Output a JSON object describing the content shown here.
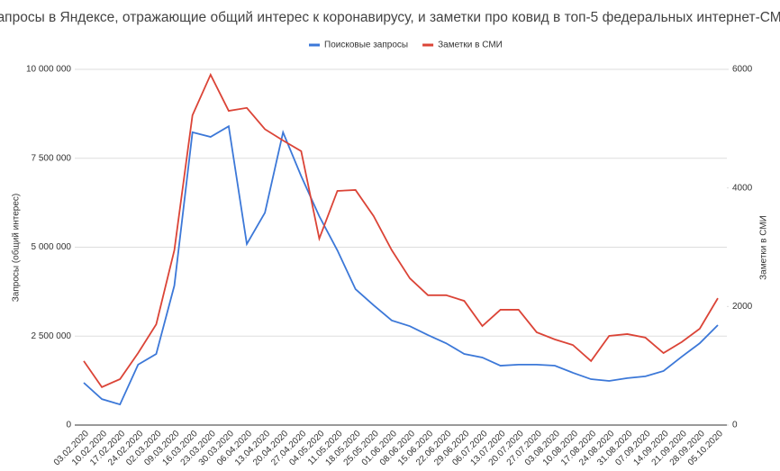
{
  "chart_data": {
    "type": "line",
    "title": "Запросы в Яндексе, отражающие общий интерес к коронавирусу, и заметки про ковид в топ-5 федеральных интернет-СМИ",
    "y_label": "Запросы (общий интерес)",
    "y2_label": "Заметки в СМИ",
    "categories": [
      "03.02.2020",
      "10.02.2020",
      "17.02.2020",
      "24.02.2020",
      "02.03.2020",
      "09.03.2020",
      "16.03.2020",
      "23.03.2020",
      "30.03.2020",
      "06.04.2020",
      "13.04.2020",
      "20.04.2020",
      "27.04.2020",
      "04.05.2020",
      "11.05.2020",
      "18.05.2020",
      "25.05.2020",
      "01.06.2020",
      "08.06.2020",
      "15.06.2020",
      "22.06.2020",
      "29.06.2020",
      "06.07.2020",
      "13.07.2020",
      "20.07.2020",
      "27.07.2020",
      "03.08.2020",
      "10.08.2020",
      "17.08.2020",
      "24.08.2020",
      "31.08.2020",
      "07.09.2020",
      "14.09.2020",
      "21.09.2020",
      "28.09.2020",
      "05.10.2020"
    ],
    "series": [
      {
        "name": "Поисковые запросы",
        "color": "#3c78d8",
        "values": [
          1190000,
          730000,
          580000,
          1700000,
          2000000,
          3920000,
          8230000,
          8100000,
          8400000,
          5090000,
          5970000,
          8230000,
          7000000,
          5870000,
          4910000,
          3820000,
          3370000,
          2940000,
          2780000,
          2530000,
          2300000,
          2000000,
          1900000,
          1670000,
          1700000,
          1700000,
          1670000,
          1470000,
          1290000,
          1240000,
          1320000,
          1370000,
          1520000,
          1920000,
          2300000,
          2810000
        ]
      },
      {
        "name": "Заметки в СМИ",
        "color": "#db4437",
        "axis": "y2",
        "values": [
          1080,
          640,
          775,
          1215,
          1700,
          2950,
          5225,
          5910,
          5300,
          5350,
          4990,
          4800,
          4620,
          3145,
          3950,
          3965,
          3525,
          2950,
          2475,
          2190,
          2190,
          2095,
          1670,
          1945,
          1945,
          1565,
          1445,
          1350,
          1080,
          1505,
          1535,
          1475,
          1215,
          1400,
          1625,
          2140
        ]
      }
    ],
    "ylim": [
      0,
      10000000
    ],
    "yticks": [
      0,
      {
        "value": 2500000,
        "label": "2 500 000"
      },
      {
        "value": 5000000,
        "label": "5 000 000"
      },
      {
        "value": 7500000,
        "label": "7 500 000"
      },
      {
        "value": 10000000,
        "label": "10 000 000"
      }
    ],
    "y2lim": [
      0,
      6000
    ],
    "y2ticks": [
      0,
      2000,
      4000,
      6000
    ],
    "grid": true,
    "legend": "top"
  }
}
